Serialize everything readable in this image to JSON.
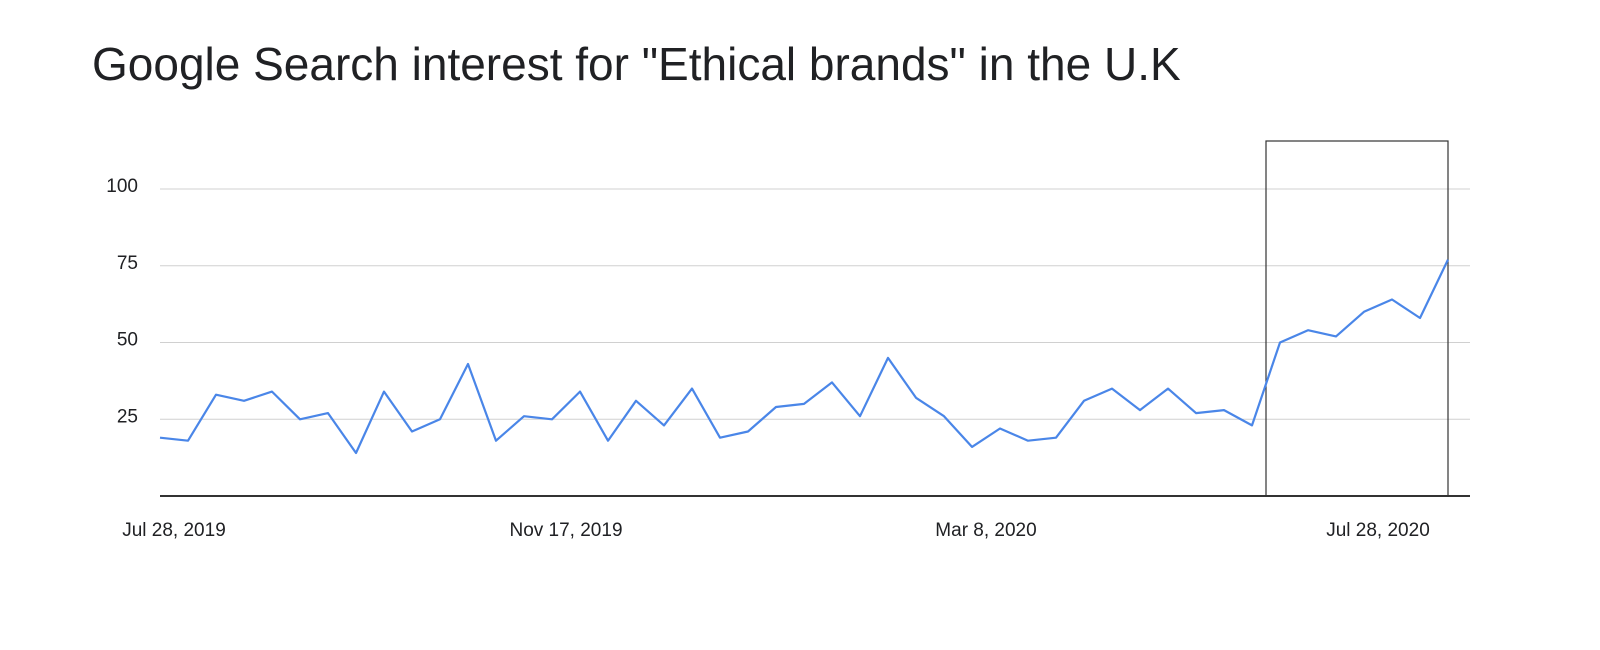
{
  "chart_data": {
    "type": "line",
    "title": "Google Search interest for \"Ethical brands\" in the U.K",
    "categories": [
      "Jul 28, 2019",
      null,
      null,
      null,
      null,
      null,
      null,
      null,
      null,
      null,
      null,
      null,
      null,
      null,
      "Nov 17, 2019",
      null,
      null,
      null,
      null,
      null,
      null,
      null,
      null,
      null,
      null,
      null,
      null,
      null,
      null,
      "Mar 8, 2020",
      null,
      null,
      null,
      null,
      null,
      null,
      null,
      null,
      null,
      null,
      null,
      null,
      null,
      "Jul 28, 2020",
      null,
      null,
      null
    ],
    "series": [
      {
        "color": "#4a86e8",
        "values": [
          19,
          18,
          33,
          31,
          34,
          25,
          27,
          14,
          34,
          21,
          25,
          43,
          18,
          26,
          25,
          34,
          18,
          31,
          23,
          35,
          19,
          21,
          29,
          30,
          37,
          26,
          45,
          32,
          26,
          16,
          22,
          18,
          19,
          31,
          35,
          28,
          35,
          27,
          28,
          23,
          50,
          54,
          52,
          60,
          64,
          58,
          77
        ]
      }
    ],
    "ylim": [
      0,
      115
    ],
    "yticks": [
      25,
      50,
      75,
      100
    ],
    "grid": true
  }
}
